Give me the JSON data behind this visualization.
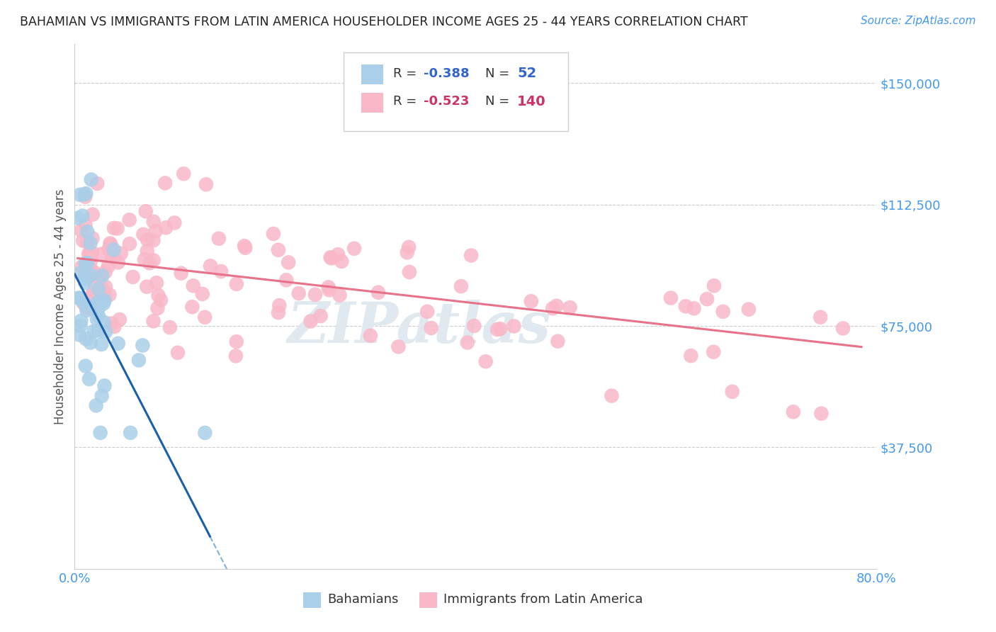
{
  "title": "BAHAMIAN VS IMMIGRANTS FROM LATIN AMERICA HOUSEHOLDER INCOME AGES 25 - 44 YEARS CORRELATION CHART",
  "source": "Source: ZipAtlas.com",
  "ylabel": "Householder Income Ages 25 - 44 years",
  "xlim": [
    0.0,
    0.8
  ],
  "ylim": [
    0,
    162000
  ],
  "yticks": [
    37500,
    75000,
    112500,
    150000
  ],
  "ytick_labels": [
    "$37,500",
    "$75,000",
    "$112,500",
    "$150,000"
  ],
  "xticks": [
    0.0,
    0.1,
    0.2,
    0.3,
    0.4,
    0.5,
    0.6,
    0.7,
    0.8
  ],
  "bahamian_color": "#aacfe8",
  "latin_color": "#f9b8c8",
  "trend_blue": "#1a5fa8",
  "trend_blue_dash": "#7fb3d8",
  "trend_pink": "#e8728a",
  "R_bahamian": -0.388,
  "N_bahamian": 52,
  "R_latin": -0.523,
  "N_latin": 140,
  "watermark": "ZIPatlas",
  "legend_label_blue": "R = -0.388   N =  52",
  "legend_label_pink": "R = -0.523   N = 140",
  "bottom_label_blue": "Bahamians",
  "bottom_label_pink": "Immigrants from Latin America"
}
